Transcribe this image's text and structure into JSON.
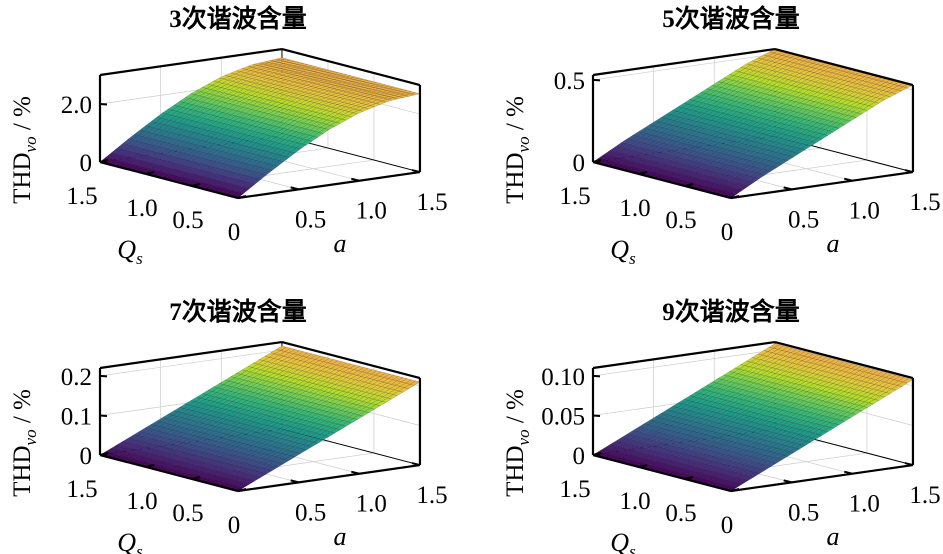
{
  "chart_data": [
    {
      "type": "surface",
      "title": "3次谐波含量",
      "xlabel": "a",
      "ylabel": "Q",
      "ylabel_sub": "s",
      "zlabel_main": "THD",
      "zlabel_sub": "vo",
      "zlabel_unit": " / %",
      "xlim": [
        0,
        1.5
      ],
      "ylim": [
        0,
        1.5
      ],
      "zlim": [
        0,
        3
      ],
      "x_ticks": [
        "0.5",
        "1.0",
        "1.5"
      ],
      "x_tick_values": [
        0.5,
        1.0,
        1.5
      ],
      "y_ticks": [
        "0",
        "0.5",
        "1.0",
        "1.5"
      ],
      "y_tick_values": [
        0,
        0.5,
        1.0,
        1.5
      ],
      "z_ticks": [
        "0",
        "2.0"
      ],
      "z_tick_values": [
        0,
        2.0
      ],
      "a": [
        0,
        0.25,
        0.5,
        0.75,
        1.0,
        1.25,
        1.5
      ],
      "Qs": [
        0,
        0.5,
        1.0,
        1.5
      ],
      "z": [
        [
          0,
          0.7,
          1.35,
          1.91,
          2.34,
          2.61,
          2.7
        ],
        [
          0,
          0.7,
          1.35,
          1.91,
          2.34,
          2.61,
          2.7
        ],
        [
          0,
          0.7,
          1.35,
          1.91,
          2.34,
          2.61,
          2.7
        ],
        [
          0,
          0.7,
          1.35,
          1.91,
          2.34,
          2.61,
          2.7
        ]
      ]
    },
    {
      "type": "surface",
      "title": "5次谐波含量",
      "xlabel": "a",
      "ylabel": "Q",
      "ylabel_sub": "s",
      "zlabel_main": "THD",
      "zlabel_sub": "vo",
      "zlabel_unit": " / %",
      "xlim": [
        0,
        1.5
      ],
      "ylim": [
        0,
        1.5
      ],
      "zlim": [
        0,
        0.53
      ],
      "x_ticks": [
        "0.5",
        "1.0",
        "1.5"
      ],
      "x_tick_values": [
        0.5,
        1.0,
        1.5
      ],
      "y_ticks": [
        "0",
        "0.5",
        "1.0",
        "1.5"
      ],
      "y_tick_values": [
        0,
        0.5,
        1.0,
        1.5
      ],
      "z_ticks": [
        "0",
        "0.5"
      ],
      "z_tick_values": [
        0,
        0.5
      ],
      "a": [
        0,
        0.25,
        0.5,
        0.75,
        1.0,
        1.25,
        1.5
      ],
      "Qs": [
        0,
        0.5,
        1.0,
        1.5
      ],
      "z": [
        [
          0,
          0.1,
          0.19,
          0.28,
          0.37,
          0.46,
          0.53
        ],
        [
          0,
          0.1,
          0.19,
          0.28,
          0.37,
          0.46,
          0.53
        ],
        [
          0,
          0.1,
          0.19,
          0.28,
          0.37,
          0.46,
          0.53
        ],
        [
          0,
          0.1,
          0.19,
          0.28,
          0.37,
          0.46,
          0.53
        ]
      ]
    },
    {
      "type": "surface",
      "title": "7次谐波含量",
      "xlabel": "a",
      "ylabel": "Q",
      "ylabel_sub": "s",
      "zlabel_main": "THD",
      "zlabel_sub": "vo",
      "zlabel_unit": " / %",
      "xlim": [
        0,
        1.5
      ],
      "ylim": [
        0,
        1.5
      ],
      "zlim": [
        0,
        0.22
      ],
      "x_ticks": [
        "0.5",
        "1.0",
        "1.5"
      ],
      "x_tick_values": [
        0.5,
        1.0,
        1.5
      ],
      "y_ticks": [
        "0",
        "0.5",
        "1.0",
        "1.5"
      ],
      "y_tick_values": [
        0,
        0.5,
        1.0,
        1.5
      ],
      "z_ticks": [
        "0",
        "0.1",
        "0.2"
      ],
      "z_tick_values": [
        0,
        0.1,
        0.2
      ],
      "a": [
        0,
        0.25,
        0.5,
        0.75,
        1.0,
        1.25,
        1.5
      ],
      "Qs": [
        0,
        0.5,
        1.0,
        1.5
      ],
      "z": [
        [
          0,
          0.035,
          0.07,
          0.105,
          0.14,
          0.175,
          0.21
        ],
        [
          0,
          0.035,
          0.07,
          0.105,
          0.14,
          0.175,
          0.21
        ],
        [
          0,
          0.035,
          0.07,
          0.105,
          0.14,
          0.175,
          0.21
        ],
        [
          0,
          0.035,
          0.07,
          0.105,
          0.14,
          0.175,
          0.21
        ]
      ]
    },
    {
      "type": "surface",
      "title": "9次谐波含量",
      "xlabel": "a",
      "ylabel": "Q",
      "ylabel_sub": "s",
      "zlabel_main": "THD",
      "zlabel_sub": "vo",
      "zlabel_unit": " / %",
      "xlim": [
        0,
        1.5
      ],
      "ylim": [
        0,
        1.5
      ],
      "zlim": [
        0,
        0.11
      ],
      "x_ticks": [
        "0.5",
        "1.0",
        "1.5"
      ],
      "x_tick_values": [
        0.5,
        1.0,
        1.5
      ],
      "y_ticks": [
        "0",
        "0.5",
        "1.0",
        "1.5"
      ],
      "y_tick_values": [
        0,
        0.5,
        1.0,
        1.5
      ],
      "z_ticks": [
        "0",
        "0.05",
        "0.10"
      ],
      "z_tick_values": [
        0,
        0.05,
        0.1
      ],
      "a": [
        0,
        0.25,
        0.5,
        0.75,
        1.0,
        1.25,
        1.5
      ],
      "Qs": [
        0,
        0.5,
        1.0,
        1.5
      ],
      "z": [
        [
          0,
          0.018,
          0.036,
          0.054,
          0.072,
          0.09,
          0.108
        ],
        [
          0,
          0.018,
          0.036,
          0.054,
          0.072,
          0.09,
          0.108
        ],
        [
          0,
          0.018,
          0.036,
          0.054,
          0.072,
          0.09,
          0.108
        ],
        [
          0,
          0.018,
          0.036,
          0.054,
          0.072,
          0.09,
          0.108
        ]
      ]
    }
  ]
}
